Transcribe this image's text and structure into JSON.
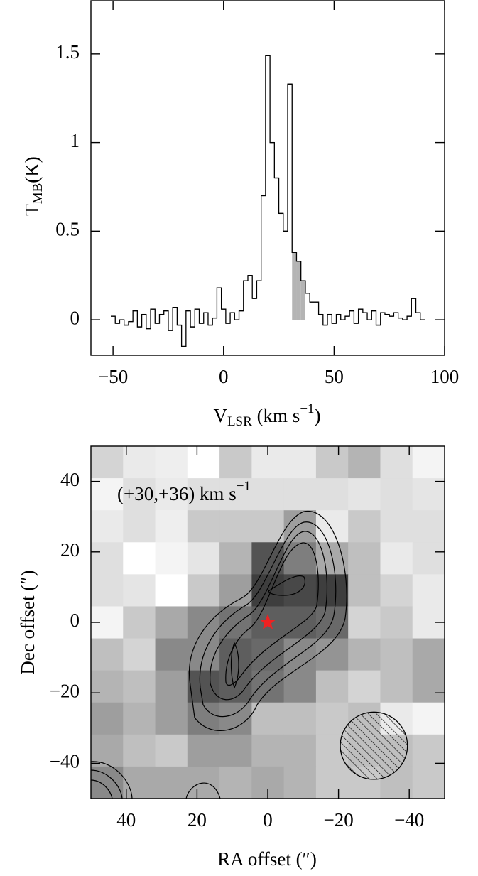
{
  "chart_data": [
    {
      "type": "step",
      "ylabel": {
        "main": "T",
        "sub": "MB",
        "rest": "(K)"
      },
      "xlabel": {
        "main": "V",
        "sub": "LSR",
        "rest": "  (km s",
        "sup": "−1",
        "end": ")"
      },
      "x": [
        -50,
        -48,
        -46,
        -44,
        -42,
        -40,
        -38,
        -36,
        -34,
        -32,
        -30,
        -28,
        -26,
        -24,
        -22,
        -20,
        -18,
        -16,
        -14,
        -12,
        -10,
        -8,
        -6,
        -4,
        -2,
        0,
        2,
        4,
        6,
        8,
        10,
        12,
        14,
        16,
        18,
        20,
        22,
        24,
        26,
        28,
        30,
        32,
        34,
        36,
        38,
        40,
        42,
        44,
        46,
        48,
        50,
        52,
        54,
        56,
        58,
        60,
        62,
        64,
        66,
        68,
        70,
        72,
        74,
        76,
        78,
        80,
        82,
        84,
        86,
        88,
        90
      ],
      "values": [
        0.02,
        -0.02,
        0.0,
        -0.03,
        -0.01,
        0.05,
        -0.04,
        0.03,
        -0.05,
        0.06,
        -0.02,
        0.03,
        0.05,
        -0.06,
        0.07,
        -0.03,
        -0.15,
        0.05,
        -0.04,
        0.06,
        -0.02,
        0.04,
        -0.03,
        0.01,
        0.18,
        0.06,
        -0.02,
        0.04,
        0.0,
        0.05,
        0.22,
        0.25,
        0.12,
        0.22,
        0.7,
        1.49,
        1.0,
        0.8,
        0.6,
        0.5,
        1.33,
        0.38,
        0.33,
        0.22,
        0.15,
        0.1,
        0.1,
        0.03,
        -0.03,
        0.03,
        -0.02,
        0.03,
        0.0,
        0.02,
        0.05,
        -0.02,
        0.06,
        0.04,
        0.0,
        0.05,
        -0.03,
        0.04,
        0.03,
        0.02,
        0.04,
        0.01,
        0.0,
        0.02,
        0.12,
        0.04,
        0.0
      ],
      "color": "#000000",
      "shaded_range": [
        31,
        37
      ],
      "shade_color": "#b4b4b4",
      "xlim": [
        -60,
        100
      ],
      "xticks": [
        {
          "value": -50,
          "label": "−50"
        },
        0,
        50,
        100
      ],
      "ylim": [
        -0.2,
        1.8
      ],
      "yticks": [
        0,
        0.5,
        1,
        1.5
      ]
    },
    {
      "type": "heatmap",
      "annotation": {
        "main": "(+30,+36) km s",
        "sup": "−1"
      },
      "ylabel": "Dec offset (″)",
      "xlabel": "RA offset (″)",
      "xlim": [
        50,
        -50
      ],
      "ylim": [
        -50,
        50
      ],
      "xticks": [
        40,
        20,
        0,
        {
          "value": -20,
          "label": "−20"
        },
        {
          "value": -40,
          "label": "−40"
        }
      ],
      "yticks": [
        40,
        20,
        0,
        {
          "value": -20,
          "label": "−20"
        },
        {
          "value": -40,
          "label": "−40"
        }
      ],
      "cells": [
        [
          0.2,
          0.1,
          0.08,
          0.0,
          0.25,
          0.1,
          0.1,
          0.25,
          0.35,
          0.15,
          0.05
        ],
        [
          0.05,
          0.15,
          0.1,
          0.15,
          0.15,
          0.15,
          0.15,
          0.15,
          0.12,
          0.15,
          0.12
        ],
        [
          0.1,
          0.15,
          0.08,
          0.25,
          0.25,
          0.25,
          0.45,
          0.1,
          0.25,
          0.15,
          0.15
        ],
        [
          0.15,
          0.0,
          0.05,
          0.12,
          0.35,
          0.8,
          0.6,
          0.4,
          0.3,
          0.1,
          0.15
        ],
        [
          0.15,
          0.12,
          0.0,
          0.25,
          0.45,
          0.9,
          0.85,
          0.9,
          0.3,
          0.2,
          0.1
        ],
        [
          0.05,
          0.25,
          0.4,
          0.55,
          0.65,
          0.75,
          0.75,
          0.7,
          0.2,
          0.25,
          0.1
        ],
        [
          0.3,
          0.2,
          0.55,
          0.55,
          0.75,
          0.7,
          0.55,
          0.5,
          0.35,
          0.3,
          0.4
        ],
        [
          0.35,
          0.3,
          0.45,
          0.8,
          0.75,
          0.65,
          0.55,
          0.3,
          0.2,
          0.3,
          0.4
        ],
        [
          0.45,
          0.35,
          0.45,
          0.6,
          0.55,
          0.3,
          0.3,
          0.25,
          0.3,
          0.1,
          0.05
        ],
        [
          0.4,
          0.3,
          0.25,
          0.45,
          0.45,
          0.35,
          0.35,
          0.25,
          0.3,
          0.3,
          0.25
        ],
        [
          0.55,
          0.4,
          0.4,
          0.4,
          0.35,
          0.4,
          0.35,
          0.25,
          0.25,
          0.3,
          0.25
        ]
      ],
      "source": {
        "x": 0,
        "y": 0,
        "color": "#ee2222"
      },
      "beam": {
        "x": -30,
        "y": -35,
        "radius": 9.5
      }
    }
  ]
}
